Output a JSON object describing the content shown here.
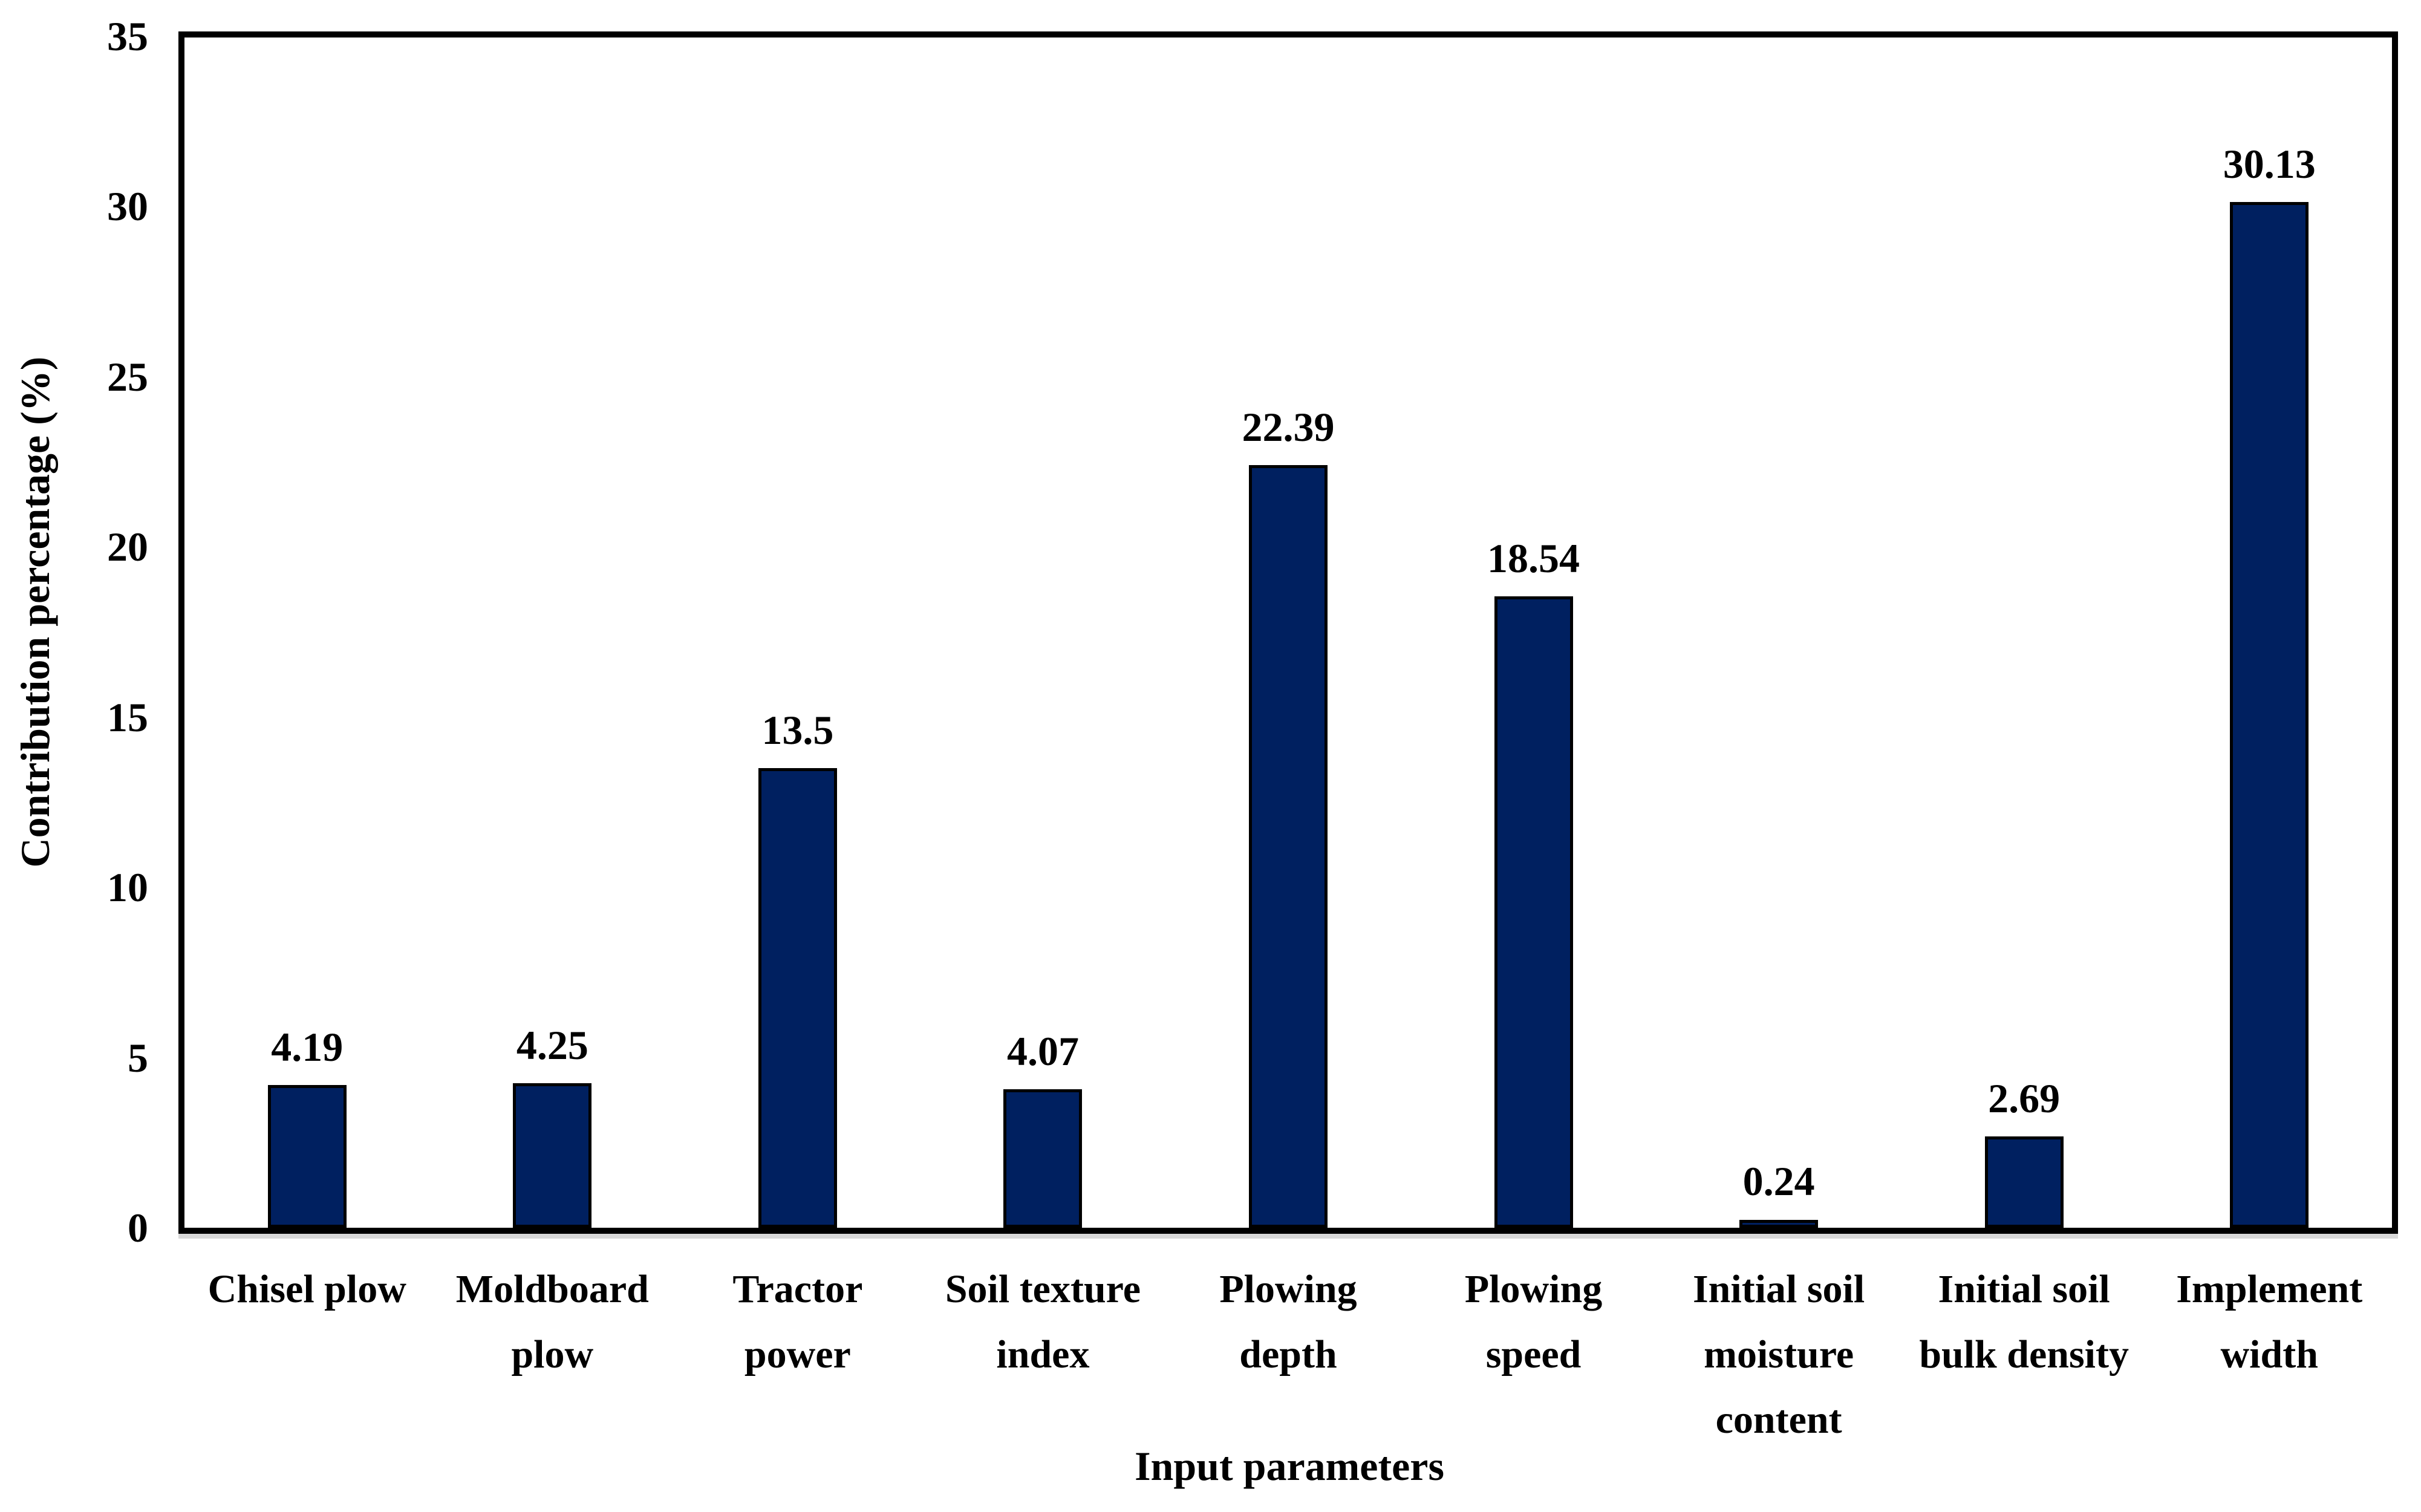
{
  "figure": {
    "background": "#ffffff",
    "text_color": "#000000"
  },
  "chart_data": {
    "type": "bar",
    "title": "",
    "xlabel": "Input parameters",
    "ylabel": "Contribution percentage (%)",
    "categories": [
      "Chisel plow",
      "Moldboard\nplow",
      "Tractor\npower",
      "Soil texture\nindex",
      "Plowing\ndepth",
      "Plowing\nspeed",
      "Initial soil\nmoisture\ncontent",
      "Initial soil\nbulk density",
      "Implement\nwidth"
    ],
    "values": [
      4.19,
      4.25,
      13.5,
      4.07,
      22.39,
      18.54,
      0.24,
      2.69,
      30.13
    ],
    "value_labels": [
      "4.19",
      "4.25",
      "13.5",
      "4.07",
      "22.39",
      "18.54",
      "0.24",
      "2.69",
      "30.13"
    ],
    "yticks": [
      0,
      5,
      10,
      15,
      20,
      25,
      30,
      35
    ],
    "ylim": [
      0,
      35
    ],
    "grid": false,
    "legend": "none",
    "bar_color": "#002060",
    "bar_border_color": "#000000",
    "frame_color": "#000000",
    "axis_shadow_color": "#d9d9d9"
  }
}
